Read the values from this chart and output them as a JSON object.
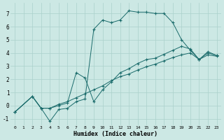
{
  "xlabel": "Humidex (Indice chaleur)",
  "xlim": [
    -0.5,
    23.5
  ],
  "ylim": [
    -1.5,
    7.8
  ],
  "yticks": [
    -1,
    0,
    1,
    2,
    3,
    4,
    5,
    6,
    7
  ],
  "xticks": [
    0,
    1,
    2,
    3,
    4,
    5,
    6,
    7,
    8,
    9,
    10,
    11,
    12,
    13,
    14,
    15,
    16,
    17,
    18,
    19,
    20,
    21,
    22,
    23
  ],
  "bg_color": "#cce8e4",
  "grid_color": "#aad0cb",
  "line_color": "#1a6b6b",
  "line1_x": [
    0,
    2,
    3,
    4,
    5,
    6,
    7,
    8,
    9,
    10,
    11,
    12,
    13,
    14,
    15,
    16,
    17,
    18,
    19,
    20,
    21,
    22,
    23
  ],
  "line1_y": [
    -0.5,
    0.7,
    -0.2,
    -1.2,
    -0.3,
    -0.2,
    0.3,
    0.5,
    5.8,
    6.5,
    6.3,
    6.5,
    7.2,
    7.1,
    7.1,
    7.0,
    7.0,
    6.3,
    5.0,
    4.2,
    3.5,
    4.1,
    3.8
  ],
  "line2_x": [
    0,
    2,
    3,
    4,
    5,
    6,
    7,
    8,
    9,
    10,
    11,
    12,
    13,
    14,
    15,
    16,
    17,
    18,
    19,
    20,
    21,
    22,
    23
  ],
  "line2_y": [
    -0.5,
    0.7,
    -0.2,
    -0.2,
    0.0,
    0.2,
    2.5,
    2.1,
    0.3,
    1.2,
    1.8,
    2.5,
    2.8,
    3.2,
    3.5,
    3.6,
    3.9,
    4.2,
    4.5,
    4.3,
    3.5,
    4.0,
    3.8
  ],
  "line3_x": [
    0,
    2,
    3,
    4,
    5,
    6,
    7,
    8,
    9,
    10,
    11,
    12,
    13,
    14,
    15,
    16,
    17,
    18,
    19,
    20,
    21,
    22,
    23
  ],
  "line3_y": [
    -0.5,
    0.7,
    -0.2,
    -0.2,
    0.1,
    0.3,
    0.6,
    0.9,
    1.2,
    1.5,
    1.9,
    2.2,
    2.4,
    2.7,
    2.95,
    3.15,
    3.4,
    3.65,
    3.85,
    4.0,
    3.5,
    3.85,
    3.75
  ]
}
